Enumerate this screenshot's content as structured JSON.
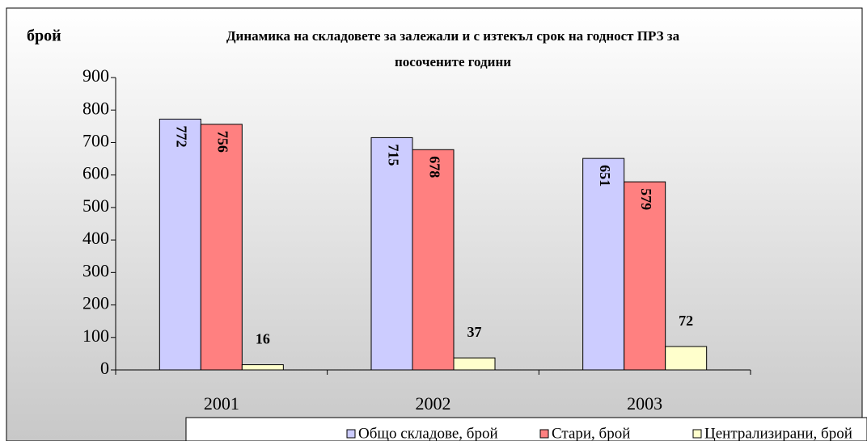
{
  "chart_data": {
    "type": "bar",
    "title": [
      "Динамика на складовете за залежали и с изтекъл срок на годност ПРЗ за",
      "посочените години"
    ],
    "y_axis_label": "брой",
    "categories": [
      "2001",
      "2002",
      "2003"
    ],
    "series": [
      {
        "name": "Общо складове, брой",
        "color": "#ccccff",
        "values": [
          772,
          715,
          651
        ]
      },
      {
        "name": "Стари, брой",
        "color": "#ff8080",
        "values": [
          756,
          678,
          579
        ]
      },
      {
        "name": "Централизирани, брой",
        "color": "#ffffcc",
        "values": [
          16,
          37,
          72
        ]
      }
    ],
    "ylim": [
      0,
      900
    ],
    "yticks": [
      0,
      100,
      200,
      300,
      400,
      500,
      600,
      700,
      800,
      900
    ],
    "legend": "bottom"
  }
}
